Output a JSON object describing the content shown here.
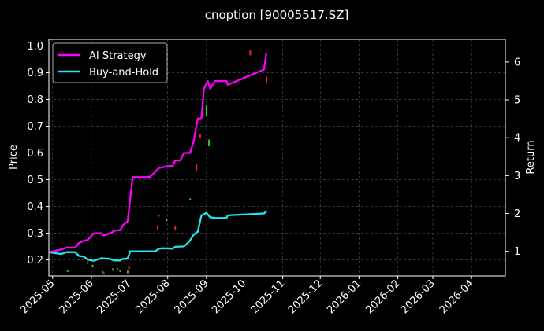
{
  "chart_data": {
    "type": "line",
    "title": "cnoption [90005517.SZ]",
    "ylabel": "Price",
    "y2label": "Return",
    "xlim": [
      "2025-04-28",
      "2026-04-28"
    ],
    "ylim": [
      0.14,
      1.025
    ],
    "y2lim": [
      0.35,
      6.6
    ],
    "x_ticks": [
      "2025-05",
      "2025-06",
      "2025-07",
      "2025-08",
      "2025-09",
      "2025-10",
      "2025-11",
      "2025-12",
      "2026-01",
      "2026-02",
      "2026-03",
      "2026-04"
    ],
    "y_ticks": [
      0.2,
      0.3,
      0.4,
      0.5,
      0.6,
      0.7,
      0.8,
      0.9,
      1.0
    ],
    "y2_ticks": [
      1,
      2,
      3,
      4,
      5,
      6
    ],
    "grid": true,
    "legend_position": "top-left",
    "colors": {
      "ai": "#ff00ff",
      "bh": "#22e5ee",
      "up": "#22cc22",
      "down": "#ee2222",
      "grid": "#555555"
    },
    "series": [
      {
        "name": "AI Strategy",
        "color": "#ff00ff",
        "axis": "return",
        "points": [
          [
            "2025-04-28",
            0.98
          ],
          [
            "2025-05-08",
            1.05
          ],
          [
            "2025-05-12",
            1.1
          ],
          [
            "2025-05-19",
            1.1
          ],
          [
            "2025-05-22",
            1.22
          ],
          [
            "2025-05-26",
            1.28
          ],
          [
            "2025-05-29",
            1.3
          ],
          [
            "2025-06-03",
            1.48
          ],
          [
            "2025-06-09",
            1.48
          ],
          [
            "2025-06-11",
            1.42
          ],
          [
            "2025-06-16",
            1.48
          ],
          [
            "2025-06-20",
            1.55
          ],
          [
            "2025-06-24",
            1.56
          ],
          [
            "2025-06-26",
            1.68
          ],
          [
            "2025-06-30",
            1.8
          ],
          [
            "2025-07-04",
            2.96
          ],
          [
            "2025-07-14",
            2.96
          ],
          [
            "2025-07-18",
            2.97
          ],
          [
            "2025-07-22",
            3.1
          ],
          [
            "2025-07-25",
            3.2
          ],
          [
            "2025-08-01",
            3.25
          ],
          [
            "2025-08-05",
            3.25
          ],
          [
            "2025-08-07",
            3.4
          ],
          [
            "2025-08-11",
            3.4
          ],
          [
            "2025-08-14",
            3.6
          ],
          [
            "2025-08-19",
            3.6
          ],
          [
            "2025-08-22",
            3.95
          ],
          [
            "2025-08-25",
            4.5
          ],
          [
            "2025-08-28",
            4.52
          ],
          [
            "2025-08-30",
            5.3
          ],
          [
            "2025-09-02",
            5.5
          ],
          [
            "2025-09-04",
            5.3
          ],
          [
            "2025-09-08",
            5.5
          ],
          [
            "2025-09-17",
            5.5
          ],
          [
            "2025-09-18",
            5.4
          ],
          [
            "2025-10-17",
            5.8
          ],
          [
            "2025-10-19",
            6.25
          ]
        ]
      },
      {
        "name": "Buy-and-Hold",
        "color": "#22e5ee",
        "axis": "return",
        "points": [
          [
            "2025-04-28",
            0.98
          ],
          [
            "2025-05-08",
            0.93
          ],
          [
            "2025-05-12",
            0.98
          ],
          [
            "2025-05-19",
            0.98
          ],
          [
            "2025-05-22",
            0.88
          ],
          [
            "2025-05-26",
            0.86
          ],
          [
            "2025-05-29",
            0.78
          ],
          [
            "2025-06-03",
            0.75
          ],
          [
            "2025-06-09",
            0.82
          ],
          [
            "2025-06-16",
            0.8
          ],
          [
            "2025-06-19",
            0.76
          ],
          [
            "2025-06-24",
            0.76
          ],
          [
            "2025-06-26",
            0.8
          ],
          [
            "2025-06-30",
            0.81
          ],
          [
            "2025-07-02",
            1.0
          ],
          [
            "2025-07-22",
            1.0
          ],
          [
            "2025-07-25",
            1.07
          ],
          [
            "2025-07-28",
            1.08
          ],
          [
            "2025-08-05",
            1.07
          ],
          [
            "2025-08-07",
            1.12
          ],
          [
            "2025-08-14",
            1.13
          ],
          [
            "2025-08-18",
            1.25
          ],
          [
            "2025-08-22",
            1.45
          ],
          [
            "2025-08-25",
            1.52
          ],
          [
            "2025-08-28",
            1.95
          ],
          [
            "2025-08-30",
            1.98
          ],
          [
            "2025-09-01",
            2.02
          ],
          [
            "2025-09-04",
            1.9
          ],
          [
            "2025-09-08",
            1.88
          ],
          [
            "2025-09-17",
            1.88
          ],
          [
            "2025-09-18",
            1.95
          ],
          [
            "2025-10-17",
            2.0
          ],
          [
            "2025-10-19",
            2.06
          ]
        ]
      }
    ],
    "price_ticks": [
      [
        "2025-05-13",
        0.155,
        0.163,
        "up"
      ],
      [
        "2025-05-29",
        0.185,
        0.195,
        "down"
      ],
      [
        "2025-06-02",
        0.175,
        0.182,
        "up"
      ],
      [
        "2025-06-10",
        0.15,
        0.158,
        "up"
      ],
      [
        "2025-06-11",
        0.146,
        0.153,
        "down"
      ],
      [
        "2025-06-18",
        0.16,
        0.168,
        "up"
      ],
      [
        "2025-06-22",
        0.162,
        0.17,
        "down"
      ],
      [
        "2025-06-24",
        0.155,
        0.163,
        "up"
      ],
      [
        "2025-06-30",
        0.15,
        0.16,
        "up"
      ],
      [
        "2025-07-01",
        0.165,
        0.178,
        "down"
      ],
      [
        "2025-07-24",
        0.315,
        0.33,
        "down"
      ],
      [
        "2025-07-25",
        0.362,
        0.368,
        "down"
      ],
      [
        "2025-07-31",
        0.345,
        0.355,
        "up"
      ],
      [
        "2025-08-07",
        0.31,
        0.325,
        "down"
      ],
      [
        "2025-08-19",
        0.425,
        0.43,
        "up"
      ],
      [
        "2025-08-24",
        0.535,
        0.56,
        "down"
      ],
      [
        "2025-08-27",
        0.655,
        0.67,
        "down"
      ],
      [
        "2025-08-29",
        0.76,
        0.775,
        "up"
      ],
      [
        "2025-09-01",
        0.74,
        0.78,
        "up"
      ],
      [
        "2025-09-03",
        0.625,
        0.65,
        "up"
      ],
      [
        "2025-10-06",
        0.965,
        0.985,
        "down"
      ],
      [
        "2025-10-19",
        0.86,
        0.885,
        "down"
      ]
    ]
  }
}
